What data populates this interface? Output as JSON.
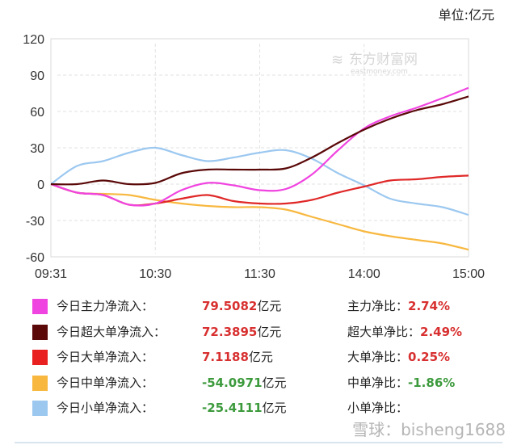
{
  "unit_label": "单位:亿元",
  "watermark_logo": "东方财富网",
  "watermark_logo_sub": "eastmoney.com",
  "watermark_bottom": "雪球：bisheng1688",
  "chart_data": {
    "type": "line",
    "title": "",
    "xlabel": "",
    "ylabel": "",
    "ylim": [
      -60,
      120
    ],
    "yticks": [
      "120",
      "90",
      "60",
      "30",
      "0",
      "-30",
      "-60"
    ],
    "xtick_labels": [
      "09:31",
      "10:30",
      "11:30",
      "14:00",
      "15:00"
    ],
    "grid": true,
    "x": [
      "09:31",
      "09:45",
      "10:00",
      "10:15",
      "10:30",
      "10:45",
      "11:00",
      "11:15",
      "11:30",
      "13:15",
      "13:30",
      "13:45",
      "14:00",
      "14:15",
      "14:30",
      "14:45",
      "15:00"
    ],
    "series": [
      {
        "name": "今日小单净流入",
        "color": "#9cc8f0",
        "values": [
          0,
          15,
          19,
          26,
          30,
          24,
          19,
          22,
          26,
          28,
          21,
          9,
          -1,
          -12,
          -16,
          -19,
          -25.4
        ]
      },
      {
        "name": "今日中单净流入",
        "color": "#f8b840",
        "values": [
          0,
          -7,
          -8,
          -9,
          -13,
          -16,
          -18,
          -19,
          -19,
          -21,
          -27,
          -33,
          -39,
          -43,
          -46,
          -49,
          -54.1
        ]
      },
      {
        "name": "今日大单净流入",
        "color": "#e02828",
        "values": [
          0,
          -7,
          -9,
          -17,
          -16,
          -12,
          -9,
          -14,
          -16,
          -16,
          -13,
          -7,
          -2,
          3,
          4,
          6,
          7.1
        ]
      },
      {
        "name": "今日主力净流入",
        "color": "#f044e0",
        "values": [
          0,
          -7,
          -9,
          -17,
          -16,
          -5,
          1,
          -1,
          -5,
          -4,
          8,
          28,
          46,
          56,
          63,
          71,
          79.5
        ]
      },
      {
        "name": "今日超大单净流入",
        "color": "#5a0808",
        "values": [
          0,
          0,
          3,
          0,
          1,
          9,
          12,
          12,
          12,
          13,
          22,
          34,
          45,
          54,
          61,
          66,
          72.4
        ]
      }
    ]
  },
  "legend": [
    {
      "label": "今日主力净流入：",
      "value": "79.5082",
      "unit": "亿元",
      "ratio_label": "主力净比：",
      "ratio": "2.74%",
      "color": "#f044e0",
      "value_color": "#d83030"
    },
    {
      "label": "今日超大单净流入：",
      "value": "72.3895",
      "unit": "亿元",
      "ratio_label": "超大单净比：",
      "ratio": "2.49%",
      "color": "#5a0808",
      "value_color": "#d83030"
    },
    {
      "label": "今日大单净流入：",
      "value": "7.1188",
      "unit": "亿元",
      "ratio_label": "大单净比：",
      "ratio": "0.25%",
      "color": "#e82020",
      "value_color": "#d83030"
    },
    {
      "label": "今日中单净流入：",
      "value": "-54.0971",
      "unit": "亿元",
      "ratio_label": "中单净比：",
      "ratio": "-1.86%",
      "color": "#f8b840",
      "value_color": "#3c9a3c"
    },
    {
      "label": "今日小单净流入：",
      "value": "-25.4111",
      "unit": "亿元",
      "ratio_label": "小单净比：",
      "ratio": "",
      "color": "#9cc8f0",
      "value_color": "#3c9a3c"
    }
  ]
}
